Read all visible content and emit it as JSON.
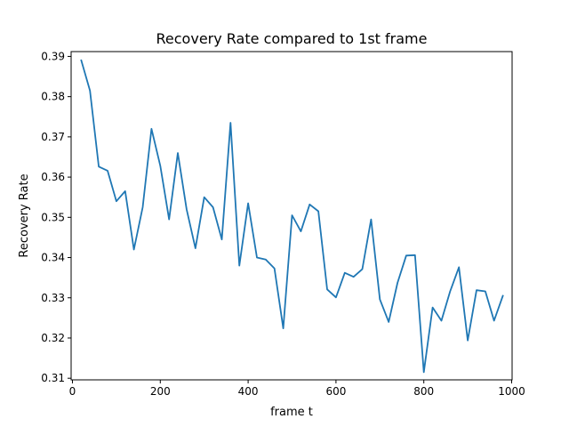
{
  "chart_data": {
    "type": "line",
    "title": "Recovery Rate compared to 1st frame",
    "xlabel": "frame t",
    "ylabel": "Recovery Rate",
    "xlim": [
      -3,
      1001
    ],
    "ylim": [
      0.3096,
      0.3912
    ],
    "xticks": [
      0,
      200,
      400,
      600,
      800,
      1000
    ],
    "xtick_labels": [
      "0",
      "200",
      "400",
      "600",
      "800",
      "1000"
    ],
    "yticks": [
      0.31,
      0.32,
      0.33,
      0.34,
      0.35,
      0.36,
      0.37,
      0.38,
      0.39
    ],
    "ytick_labels": [
      "0.31",
      "0.32",
      "0.33",
      "0.34",
      "0.35",
      "0.36",
      "0.37",
      "0.38",
      "0.39"
    ],
    "grid": false,
    "series": [
      {
        "color": "#1f77b4",
        "x": [
          20,
          40,
          60,
          80,
          100,
          120,
          140,
          160,
          180,
          200,
          220,
          240,
          260,
          280,
          300,
          320,
          340,
          360,
          380,
          400,
          420,
          440,
          460,
          480,
          500,
          520,
          540,
          560,
          580,
          600,
          620,
          640,
          660,
          680,
          700,
          720,
          740,
          760,
          780,
          800,
          820,
          840,
          860,
          880,
          900,
          920,
          940,
          960,
          980
        ],
        "values": [
          0.389,
          0.3815,
          0.3626,
          0.3616,
          0.354,
          0.3565,
          0.342,
          0.3525,
          0.372,
          0.3628,
          0.3495,
          0.366,
          0.352,
          0.3423,
          0.355,
          0.3525,
          0.3445,
          0.3735,
          0.338,
          0.3535,
          0.34,
          0.3395,
          0.3373,
          0.3224,
          0.3505,
          0.3465,
          0.3532,
          0.3515,
          0.3321,
          0.3301,
          0.3362,
          0.3352,
          0.3371,
          0.3495,
          0.3296,
          0.324,
          0.3337,
          0.3405,
          0.3406,
          0.3115,
          0.3276,
          0.3243,
          0.3316,
          0.3376,
          0.3194,
          0.3319,
          0.3316,
          0.3243,
          0.3305
        ]
      }
    ]
  }
}
